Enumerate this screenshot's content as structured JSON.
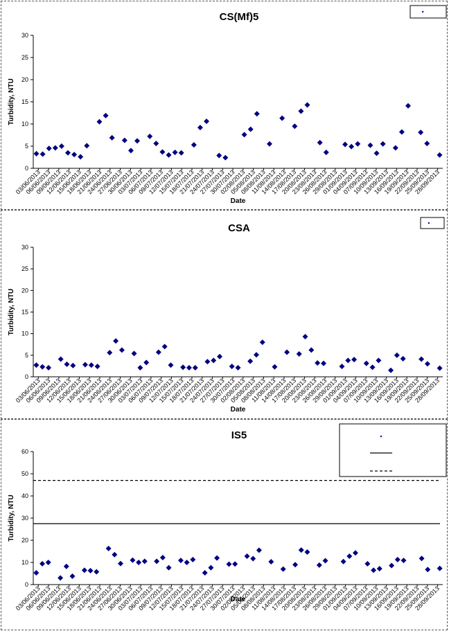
{
  "chart_data": [
    {
      "type": "scatter",
      "title": "CS(Mf)5",
      "xlabel": "Date",
      "ylabel": "Turbidity, NTU",
      "ylim": [
        0,
        30
      ],
      "yticks": [
        "0",
        "5",
        "10",
        "15",
        "20",
        "25",
        "30"
      ],
      "x_tick_labels": [
        "03/06/2013",
        "06/06/2013",
        "09/06/2013",
        "12/06/2013",
        "15/06/2013",
        "18/06/2013",
        "21/06/2013",
        "24/06/2013",
        "27/06/2013",
        "30/06/2013",
        "03/07/2013",
        "06/07/2013",
        "09/07/2013",
        "12/07/2013",
        "15/07/2013",
        "18/07/2013",
        "21/07/2013",
        "24/07/2013",
        "27/07/2013",
        "30/07/2013",
        "02/08/2013",
        "05/08/2013",
        "08/08/2013",
        "11/08/2013",
        "14/08/2013",
        "17/08/2013",
        "20/08/2013",
        "23/08/2013",
        "26/08/2013",
        "29/08/2013",
        "01/09/2013",
        "04/09/2013",
        "07/09/2013",
        "10/09/2013",
        "13/09/2013",
        "16/09/2013",
        "19/09/2013",
        "22/09/2013",
        "25/09/2013",
        "28/09/2013"
      ],
      "legend": {
        "position": "top-right",
        "entries": [
          ""
        ]
      },
      "grid": false,
      "series": [
        {
          "marker": "diamond",
          "color": "#000080",
          "points": [
            [
              0,
              3.3
            ],
            [
              1,
              3.2
            ],
            [
              2,
              4.5
            ],
            [
              3,
              4.6
            ],
            [
              4,
              5.0
            ],
            [
              5,
              3.5
            ],
            [
              6,
              3.1
            ],
            [
              7,
              2.6
            ],
            [
              8,
              5.1
            ],
            [
              10,
              10.5
            ],
            [
              11,
              11.9
            ],
            [
              12,
              6.9
            ],
            [
              14,
              6.3
            ],
            [
              15,
              4.0
            ],
            [
              16,
              6.2
            ],
            [
              18,
              7.2
            ],
            [
              19,
              5.6
            ],
            [
              20,
              3.7
            ],
            [
              21,
              3.0
            ],
            [
              22,
              3.6
            ],
            [
              23,
              3.5
            ],
            [
              25,
              5.3
            ],
            [
              26,
              9.2
            ],
            [
              27,
              10.6
            ],
            [
              29,
              2.9
            ],
            [
              30,
              2.4
            ],
            [
              33,
              7.6
            ],
            [
              34,
              8.8
            ],
            [
              35,
              12.3
            ],
            [
              37,
              5.5
            ],
            [
              39,
              11.3
            ],
            [
              41,
              9.5
            ],
            [
              42,
              12.9
            ],
            [
              43,
              14.3
            ],
            [
              45,
              5.8
            ],
            [
              46,
              3.6
            ],
            [
              49,
              5.4
            ],
            [
              50,
              4.9
            ],
            [
              51,
              5.5
            ],
            [
              53,
              5.2
            ],
            [
              54,
              3.4
            ],
            [
              55,
              5.5
            ],
            [
              57,
              4.6
            ],
            [
              58,
              8.2
            ],
            [
              59,
              14.1
            ],
            [
              61,
              8.1
            ],
            [
              62,
              5.6
            ],
            [
              64,
              3.0
            ]
          ]
        }
      ]
    },
    {
      "type": "scatter",
      "title": "CSA",
      "xlabel": "Date",
      "ylabel": "Turbidity, NTU",
      "ylim": [
        0,
        30
      ],
      "yticks": [
        "0",
        "5",
        "10",
        "15",
        "20",
        "25",
        "30"
      ],
      "x_tick_labels": [
        "03/06/2013",
        "06/06/2013",
        "09/06/2013",
        "12/06/2013",
        "15/06/2013",
        "18/06/2013",
        "21/06/2013",
        "24/06/2013",
        "27/06/2013",
        "30/06/2013",
        "03/07/2013",
        "06/07/2013",
        "09/07/2013",
        "12/07/2013",
        "15/07/2013",
        "18/07/2013",
        "21/07/2013",
        "24/07/2013",
        "27/07/2013",
        "30/07/2013",
        "02/08/2013",
        "05/08/2013",
        "08/08/2013",
        "11/08/2013",
        "14/08/2013",
        "17/08/2013",
        "20/08/2013",
        "23/08/2013",
        "26/08/2013",
        "29/08/2013",
        "01/09/2013",
        "04/09/2013",
        "07/09/2013",
        "10/09/2013",
        "13/09/2013",
        "16/09/2013",
        "19/09/2013",
        "22/09/2013",
        "25/09/2013",
        "28/09/2013"
      ],
      "legend": {
        "position": "top-right",
        "entries": [
          ""
        ]
      },
      "grid": false,
      "series": [
        {
          "marker": "diamond",
          "color": "#000080",
          "points": [
            [
              0,
              2.7
            ],
            [
              1,
              2.3
            ],
            [
              2,
              2.1
            ],
            [
              4,
              4.1
            ],
            [
              5,
              2.9
            ],
            [
              6,
              2.6
            ],
            [
              8,
              2.8
            ],
            [
              9,
              2.7
            ],
            [
              10,
              2.4
            ],
            [
              12,
              5.6
            ],
            [
              13,
              8.3
            ],
            [
              14,
              6.2
            ],
            [
              16,
              5.4
            ],
            [
              17,
              2.1
            ],
            [
              18,
              3.3
            ],
            [
              20,
              5.7
            ],
            [
              21,
              7.0
            ],
            [
              22,
              2.7
            ],
            [
              24,
              2.2
            ],
            [
              25,
              2.1
            ],
            [
              26,
              2.1
            ],
            [
              28,
              3.5
            ],
            [
              29,
              3.8
            ],
            [
              30,
              4.7
            ],
            [
              32,
              2.4
            ],
            [
              33,
              2.1
            ],
            [
              35,
              3.6
            ],
            [
              36,
              5.1
            ],
            [
              37,
              8.0
            ],
            [
              39,
              2.3
            ],
            [
              41,
              5.7
            ],
            [
              43,
              5.3
            ],
            [
              44,
              9.3
            ],
            [
              45,
              6.2
            ],
            [
              46,
              3.2
            ],
            [
              47,
              3.1
            ],
            [
              50,
              2.4
            ],
            [
              51,
              3.8
            ],
            [
              52,
              4.0
            ],
            [
              54,
              3.1
            ],
            [
              55,
              2.2
            ],
            [
              56,
              3.8
            ],
            [
              58,
              1.5
            ],
            [
              59,
              5.0
            ],
            [
              60,
              4.2
            ],
            [
              63,
              4.1
            ],
            [
              64,
              3.0
            ],
            [
              66,
              2.0
            ]
          ]
        }
      ]
    },
    {
      "type": "scatter",
      "title": "IS5",
      "xlabel": "Date",
      "ylabel": "Turbidity, NTU",
      "ylim": [
        0,
        60
      ],
      "yticks": [
        "0",
        "10",
        "20",
        "30",
        "40",
        "50",
        "60"
      ],
      "x_tick_labels": [
        "03/06/2013",
        "06/06/2013",
        "09/06/2013",
        "12/06/2013",
        "15/06/2013",
        "18/06/2013",
        "21/06/2013",
        "24/06/2013",
        "27/06/2013",
        "30/06/2013",
        "03/07/2013",
        "06/07/2013",
        "09/07/2013",
        "12/07/2013",
        "15/07/2013",
        "18/07/2013",
        "21/07/2013",
        "24/07/2013",
        "27/07/2013",
        "30/07/2013",
        "02/08/2013",
        "05/08/2013",
        "08/08/2013",
        "11/08/2013",
        "14/08/2013",
        "17/08/2013",
        "20/08/2013",
        "23/08/2013",
        "26/08/2013",
        "29/08/2013",
        "01/09/2013",
        "04/09/2013",
        "07/09/2013",
        "10/09/2013",
        "13/09/2013",
        "16/09/2013",
        "19/09/2013",
        "22/09/2013",
        "25/09/2013",
        "28/09/2013"
      ],
      "legend": {
        "position": "top-right",
        "entries": [
          "",
          "",
          ""
        ]
      },
      "grid": false,
      "reference_lines": [
        {
          "y": 27.5,
          "style": "solid"
        },
        {
          "y": 47.0,
          "style": "dashed"
        }
      ],
      "series": [
        {
          "marker": "diamond",
          "color": "#000080",
          "points": [
            [
              0,
              5.3
            ],
            [
              1,
              9.4
            ],
            [
              2,
              10.0
            ],
            [
              4,
              3.0
            ],
            [
              5,
              8.2
            ],
            [
              6,
              3.8
            ],
            [
              8,
              6.5
            ],
            [
              9,
              6.3
            ],
            [
              10,
              5.8
            ],
            [
              12,
              16.3
            ],
            [
              13,
              13.5
            ],
            [
              14,
              9.5
            ],
            [
              16,
              11.0
            ],
            [
              17,
              10.0
            ],
            [
              18,
              10.5
            ],
            [
              20,
              10.5
            ],
            [
              21,
              12.2
            ],
            [
              22,
              7.6
            ],
            [
              24,
              10.9
            ],
            [
              25,
              10.0
            ],
            [
              26,
              11.3
            ],
            [
              28,
              5.3
            ],
            [
              29,
              7.6
            ],
            [
              30,
              12.0
            ],
            [
              32,
              9.2
            ],
            [
              33,
              9.3
            ],
            [
              35,
              12.8
            ],
            [
              36,
              11.7
            ],
            [
              37,
              15.5
            ],
            [
              39,
              10.3
            ],
            [
              41,
              7.0
            ],
            [
              43,
              9.0
            ],
            [
              44,
              15.6
            ],
            [
              45,
              14.7
            ],
            [
              47,
              8.8
            ],
            [
              48,
              10.8
            ],
            [
              51,
              10.4
            ],
            [
              52,
              12.8
            ],
            [
              53,
              14.3
            ],
            [
              55,
              9.4
            ],
            [
              56,
              6.5
            ],
            [
              57,
              7.2
            ],
            [
              59,
              8.6
            ],
            [
              60,
              11.3
            ],
            [
              61,
              10.9
            ],
            [
              64,
              11.8
            ],
            [
              65,
              6.8
            ],
            [
              67,
              7.3
            ]
          ]
        }
      ]
    }
  ]
}
